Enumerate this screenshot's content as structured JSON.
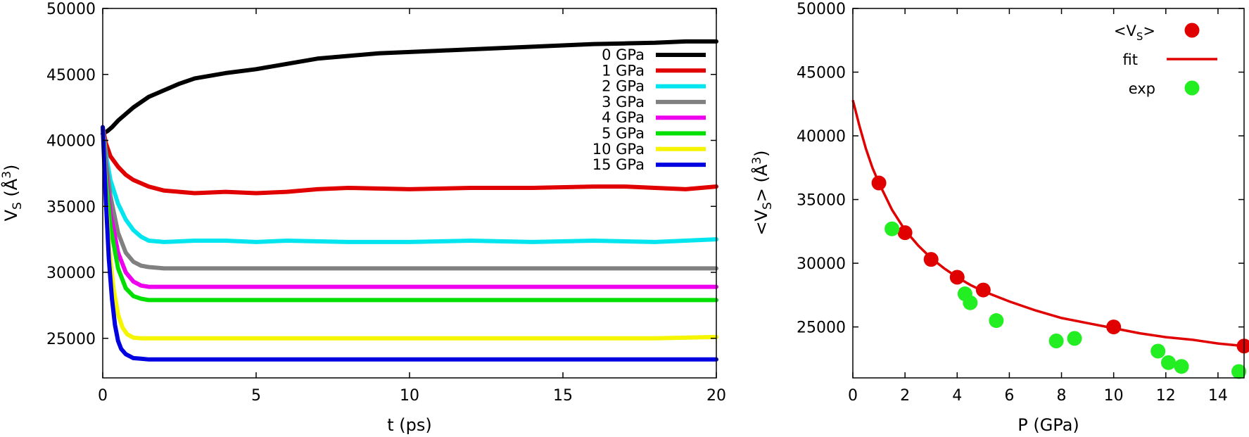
{
  "chart_data": [
    {
      "type": "line",
      "xlabel": "t (ps)",
      "ylabel": "V",
      "ylabel_sub": "S",
      "ylabel_unit": " (Å",
      "ylabel_sup": "3",
      "ylabel_close": ")",
      "xlim": [
        0,
        20
      ],
      "ylim": [
        22000,
        50000
      ],
      "xticks": [
        0,
        5,
        10,
        15,
        20
      ],
      "yticks": [
        25000,
        30000,
        35000,
        40000,
        45000,
        50000
      ],
      "legend_position": "top-right",
      "grid": false,
      "series": [
        {
          "name": "0 GPa",
          "color": "#000000",
          "x": [
            0,
            0.15,
            0.3,
            0.5,
            0.75,
            1,
            1.5,
            2,
            2.5,
            3,
            4,
            5,
            6,
            7,
            8,
            9,
            10,
            11,
            12,
            13,
            14,
            15,
            16,
            17,
            18,
            19,
            20
          ],
          "y": [
            40500,
            40700,
            41000,
            41500,
            42000,
            42500,
            43300,
            43800,
            44300,
            44700,
            45100,
            45400,
            45800,
            46200,
            46400,
            46600,
            46700,
            46800,
            46900,
            47000,
            47100,
            47200,
            47300,
            47350,
            47400,
            47500,
            47500
          ]
        },
        {
          "name": "1 GPa",
          "color": "#e00000",
          "x": [
            0,
            0.1,
            0.25,
            0.5,
            0.75,
            1,
            1.5,
            2,
            3,
            4,
            5,
            6,
            7,
            8,
            10,
            12,
            14,
            16,
            17,
            18,
            19,
            20
          ],
          "y": [
            41000,
            39800,
            38800,
            38000,
            37400,
            37000,
            36500,
            36200,
            36000,
            36100,
            36000,
            36100,
            36300,
            36400,
            36300,
            36400,
            36400,
            36500,
            36500,
            36400,
            36300,
            36500
          ]
        },
        {
          "name": "2 GPa",
          "color": "#00e5ee",
          "x": [
            0,
            0.1,
            0.25,
            0.5,
            0.75,
            1,
            1.25,
            1.5,
            2,
            3,
            4,
            5,
            6,
            8,
            10,
            12,
            14,
            16,
            18,
            20
          ],
          "y": [
            41000,
            39000,
            37000,
            35200,
            34000,
            33200,
            32700,
            32400,
            32300,
            32400,
            32400,
            32300,
            32400,
            32300,
            32300,
            32400,
            32300,
            32400,
            32300,
            32500
          ]
        },
        {
          "name": "3 GPa",
          "color": "#808080",
          "x": [
            0,
            0.1,
            0.25,
            0.5,
            0.75,
            1,
            1.25,
            1.5,
            2,
            3,
            4,
            6,
            8,
            10,
            12,
            14,
            16,
            18,
            20
          ],
          "y": [
            41000,
            38500,
            35800,
            33000,
            31500,
            30800,
            30500,
            30400,
            30300,
            30300,
            30300,
            30300,
            30300,
            30300,
            30300,
            30300,
            30300,
            30300,
            30300
          ]
        },
        {
          "name": "4 GPa",
          "color": "#ee00ee",
          "x": [
            0,
            0.1,
            0.25,
            0.5,
            0.75,
            1,
            1.25,
            1.5,
            2,
            3,
            5,
            8,
            10,
            12,
            14,
            16,
            18,
            20
          ],
          "y": [
            41000,
            37800,
            34500,
            31500,
            30000,
            29300,
            29000,
            28900,
            28900,
            28900,
            28900,
            28900,
            28900,
            28900,
            28900,
            28900,
            28900,
            28900
          ]
        },
        {
          "name": "5 GPa",
          "color": "#00e000",
          "x": [
            0,
            0.1,
            0.25,
            0.5,
            0.75,
            1,
            1.25,
            1.5,
            2,
            3,
            5,
            8,
            10,
            12,
            14,
            16,
            18,
            20
          ],
          "y": [
            41000,
            37200,
            33500,
            30300,
            28800,
            28200,
            28000,
            27900,
            27900,
            27900,
            27900,
            27900,
            27900,
            27900,
            27900,
            27900,
            27900,
            27900
          ]
        },
        {
          "name": "10 GPa",
          "color": "#f5f500",
          "x": [
            0,
            0.1,
            0.2,
            0.35,
            0.5,
            0.65,
            0.8,
            1,
            1.25,
            1.5,
            2,
            4,
            6,
            8,
            10,
            12,
            14,
            16,
            18,
            20
          ],
          "y": [
            41000,
            36000,
            32000,
            28800,
            26800,
            25800,
            25300,
            25050,
            25000,
            25000,
            25000,
            25000,
            25000,
            25000,
            25000,
            25000,
            25000,
            25000,
            25000,
            25100
          ]
        },
        {
          "name": "15 GPa",
          "color": "#0000e0",
          "x": [
            0,
            0.1,
            0.2,
            0.3,
            0.4,
            0.5,
            0.6,
            0.75,
            1,
            1.25,
            1.5,
            2,
            4,
            6,
            8,
            10,
            12,
            14,
            16,
            18,
            20
          ],
          "y": [
            41000,
            35500,
            31000,
            28000,
            26000,
            24800,
            24200,
            23800,
            23500,
            23450,
            23400,
            23400,
            23400,
            23400,
            23400,
            23400,
            23400,
            23400,
            23400,
            23400,
            23400
          ]
        }
      ]
    },
    {
      "type": "scatter",
      "xlabel": "P (GPa)",
      "ylabel": "<V",
      "ylabel_sub": "S",
      "ylabel_unit": "> (Å",
      "ylabel_sup": "3",
      "ylabel_close": ")",
      "xlim": [
        0,
        15
      ],
      "ylim": [
        21000,
        50000
      ],
      "xticks": [
        0,
        2,
        4,
        6,
        8,
        10,
        12,
        14
      ],
      "yticks": [
        25000,
        30000,
        35000,
        40000,
        45000,
        50000
      ],
      "legend_position": "top-right",
      "grid": false,
      "legend": [
        {
          "label": "<V",
          "label_sub": "S",
          "label_close": ">",
          "kind": "point",
          "color": "#e00000"
        },
        {
          "label": "fit",
          "kind": "line",
          "color": "#e00000"
        },
        {
          "label": "exp",
          "kind": "point",
          "color": "#22ee22"
        }
      ],
      "series": [
        {
          "name": "<VS>",
          "color": "#e00000",
          "x": [
            1,
            2,
            3,
            4,
            5,
            10,
            15
          ],
          "y": [
            36300,
            32400,
            30300,
            28900,
            27900,
            25000,
            23500
          ]
        },
        {
          "name": "exp",
          "color": "#22ee22",
          "x": [
            1.5,
            4.3,
            4.5,
            5.5,
            7.8,
            8.5,
            11.7,
            12.1,
            12.6,
            14.8
          ],
          "y": [
            32700,
            27600,
            26900,
            25500,
            23900,
            24100,
            23100,
            22200,
            21900,
            21500
          ]
        },
        {
          "name": "fit",
          "color": "#e00000",
          "x": [
            0,
            0.25,
            0.5,
            0.75,
            1,
            1.5,
            2,
            2.5,
            3,
            3.5,
            4,
            4.5,
            5,
            6,
            7,
            8,
            9,
            10,
            11,
            12,
            13,
            14,
            15
          ],
          "y": [
            42800,
            40800,
            39000,
            37500,
            36300,
            34200,
            32600,
            31400,
            30400,
            29600,
            28900,
            28300,
            27800,
            27000,
            26300,
            25700,
            25300,
            24900,
            24500,
            24200,
            24000,
            23700,
            23500
          ]
        }
      ]
    }
  ]
}
